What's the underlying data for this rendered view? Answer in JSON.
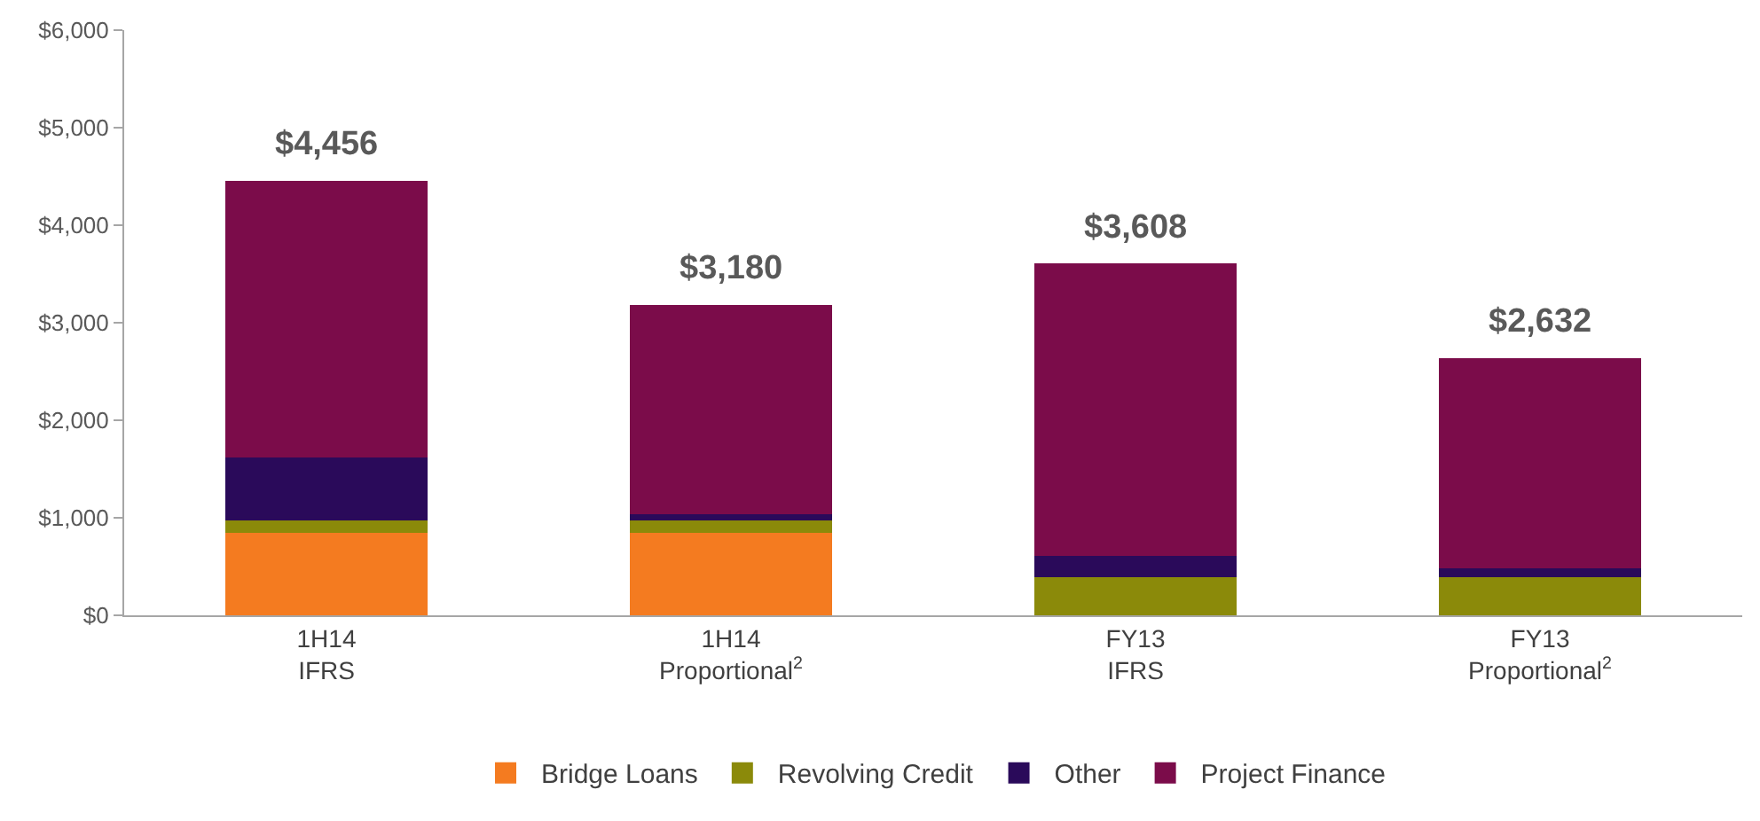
{
  "chart_data": {
    "type": "bar",
    "stacked": true,
    "categories": [
      "1H14\nIFRS",
      "1H14\nProportional$^{2}$",
      "FY13\nIFRS",
      "FY13\nProportional$^{2}$"
    ],
    "series": [
      {
        "name": "Bridge Loans",
        "color": "#f47b20",
        "values": [
          850,
          850,
          0,
          0
        ]
      },
      {
        "name": "Revolving Credit",
        "color": "#8b8a0a",
        "values": [
          120,
          120,
          390,
          390
        ]
      },
      {
        "name": "Other",
        "color": "#2a0a5a",
        "values": [
          650,
          70,
          220,
          90
        ]
      },
      {
        "name": "Project Finance",
        "color": "#7b0c4a",
        "values": [
          2836,
          2140,
          2998,
          2152
        ]
      }
    ],
    "totals": [
      "$4,456",
      "$3,180",
      "$3,608",
      "$2,632"
    ],
    "ylim": [
      0,
      6000
    ],
    "yticks": [
      {
        "value": 0,
        "label": "$0"
      },
      {
        "value": 1000,
        "label": "$1,000"
      },
      {
        "value": 2000,
        "label": "$2,000"
      },
      {
        "value": 3000,
        "label": "$3,000"
      },
      {
        "value": 4000,
        "label": "$4,000"
      },
      {
        "value": 5000,
        "label": "$5,000"
      },
      {
        "value": 6000,
        "label": "$6,000"
      }
    ],
    "legend": "bottom"
  }
}
